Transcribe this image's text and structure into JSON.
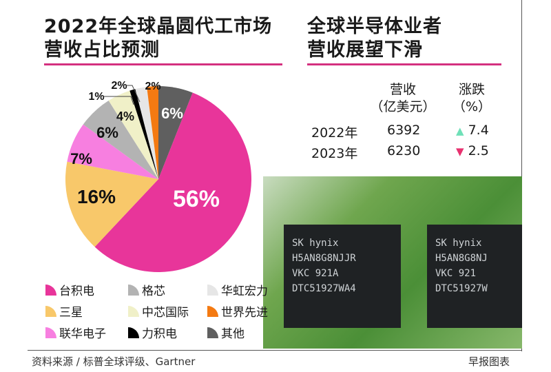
{
  "left_title": [
    "2022年全球晶圆代工市场",
    "营收占比预测"
  ],
  "right_title": [
    "全球半导体业者",
    "营收展望下滑"
  ],
  "table": {
    "headers": [
      [
        "营收",
        "（亿美元）"
      ],
      [
        "涨跌",
        "（%）"
      ]
    ],
    "rows": [
      {
        "year": "2022年",
        "revenue": "6392",
        "change": "7.4",
        "direction": "up"
      },
      {
        "year": "2023年",
        "revenue": "6230",
        "change": "2.5",
        "direction": "down"
      }
    ],
    "up_color": "#6fe0b8",
    "down_color": "#e8316f"
  },
  "chart_data": {
    "type": "pie",
    "title": "2022年全球晶圆代工市场营收占比预测",
    "start": "12 o'clock, clockwise",
    "slices": [
      {
        "name": "其他",
        "value": 6,
        "label": "6%",
        "color": "#5f5f5f"
      },
      {
        "name": "台积电",
        "value": 56,
        "label": "56%",
        "color": "#e8359a"
      },
      {
        "name": "三星",
        "value": 16,
        "label": "16%",
        "color": "#f8c86a"
      },
      {
        "name": "联华电子",
        "value": 7,
        "label": "7%",
        "color": "#f77fe0"
      },
      {
        "name": "格芯",
        "value": 6,
        "label": "6%",
        "color": "#b3b3b3"
      },
      {
        "name": "中芯国际",
        "value": 4,
        "label": "4%",
        "color": "#f0f0c8"
      },
      {
        "name": "力积电",
        "value": 1,
        "label": "1%",
        "color": "#000000"
      },
      {
        "name": "华虹宏力",
        "value": 2,
        "label": "2%",
        "color": "#e6e6e6"
      },
      {
        "name": "世界先进",
        "value": 2,
        "label": "2%",
        "color": "#f47a12"
      }
    ],
    "legend_order": [
      "台积电",
      "格芯",
      "华虹宏力",
      "三星",
      "中芯国际",
      "世界先进",
      "联华电子",
      "力积电",
      "其他"
    ],
    "legend": "bottom"
  },
  "photo": {
    "chip_text": [
      [
        "SK hynix",
        "H5AN8G8NJJR",
        "VKC    921A",
        "DTC51927WA4"
      ],
      [
        "SK hynix",
        "H5AN8G8NJ",
        "VKC    921",
        "DTC51927W"
      ]
    ]
  },
  "footer": {
    "source": "资料来源 / 标普全球评级、Gartner",
    "credit": "早报图表"
  }
}
